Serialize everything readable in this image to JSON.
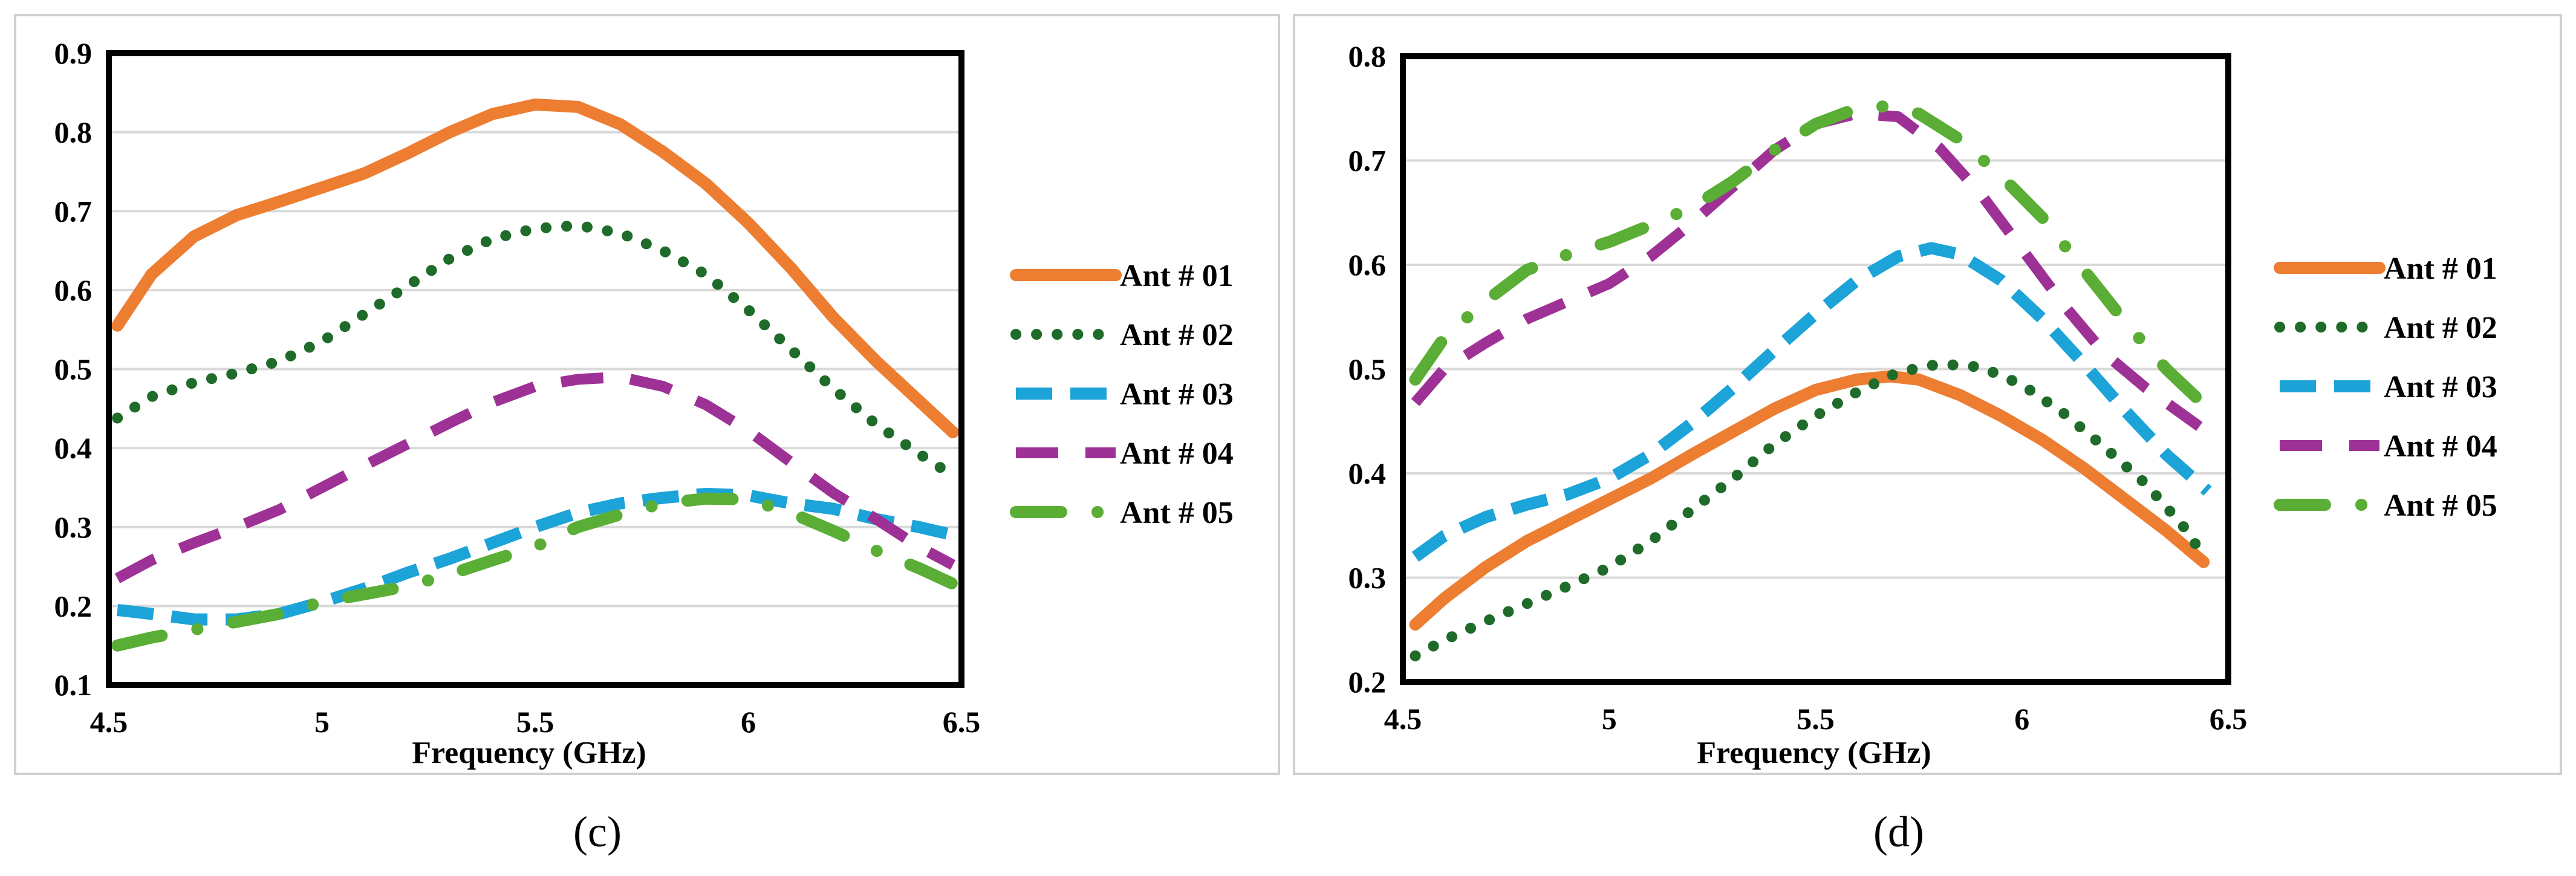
{
  "chart_data": [
    {
      "type": "line",
      "panel_label": "(c)",
      "xlabel": "Frequency (GHz)",
      "ylabel": "",
      "xlim": [
        4.5,
        6.5
      ],
      "ylim": [
        0.1,
        0.9
      ],
      "xticks": [
        4.5,
        5,
        5.5,
        6,
        6.5
      ],
      "yticks": [
        0.1,
        0.2,
        0.3,
        0.4,
        0.5,
        0.6,
        0.7,
        0.8,
        0.9
      ],
      "xtick_labels": [
        "4.5",
        "5",
        "5.5",
        "6",
        "6.5"
      ],
      "ytick_labels": [
        "0.1",
        "0.2",
        "0.3",
        "0.4",
        "0.5",
        "0.6",
        "0.7",
        "0.8",
        "0.9"
      ],
      "grid": true,
      "legend_position": "right",
      "series": [
        {
          "name": "Ant # 01",
          "color": "#ED7D31",
          "style": "solid",
          "x": [
            4.52,
            4.6,
            4.7,
            4.8,
            4.9,
            5.0,
            5.1,
            5.2,
            5.3,
            5.4,
            5.5,
            5.6,
            5.7,
            5.8,
            5.9,
            6.0,
            6.1,
            6.2,
            6.3,
            6.4,
            6.48
          ],
          "y": [
            0.555,
            0.62,
            0.668,
            0.695,
            0.712,
            0.73,
            0.748,
            0.773,
            0.8,
            0.823,
            0.835,
            0.832,
            0.81,
            0.775,
            0.735,
            0.685,
            0.628,
            0.565,
            0.51,
            0.46,
            0.42
          ]
        },
        {
          "name": "Ant # 02",
          "color": "#1E6B2A",
          "style": "dotted",
          "x": [
            4.52,
            4.6,
            4.7,
            4.8,
            4.9,
            5.0,
            5.1,
            5.2,
            5.3,
            5.4,
            5.5,
            5.6,
            5.7,
            5.8,
            5.9,
            6.0,
            6.1,
            6.2,
            6.3,
            6.4,
            6.48
          ],
          "y": [
            0.438,
            0.465,
            0.483,
            0.495,
            0.51,
            0.535,
            0.57,
            0.605,
            0.64,
            0.665,
            0.678,
            0.682,
            0.672,
            0.65,
            0.62,
            0.575,
            0.525,
            0.475,
            0.43,
            0.393,
            0.365
          ]
        },
        {
          "name": "Ant # 03",
          "color": "#1CA3D8",
          "style": "dashed",
          "x": [
            4.52,
            4.6,
            4.7,
            4.8,
            4.9,
            5.0,
            5.1,
            5.2,
            5.3,
            5.4,
            5.5,
            5.6,
            5.7,
            5.8,
            5.9,
            6.0,
            6.1,
            6.2,
            6.3,
            6.4,
            6.48
          ],
          "y": [
            0.195,
            0.19,
            0.183,
            0.183,
            0.19,
            0.205,
            0.222,
            0.242,
            0.26,
            0.28,
            0.3,
            0.318,
            0.33,
            0.337,
            0.342,
            0.34,
            0.33,
            0.323,
            0.31,
            0.3,
            0.29
          ]
        },
        {
          "name": "Ant # 04",
          "color": "#9E3196",
          "style": "longdash",
          "x": [
            4.52,
            4.6,
            4.7,
            4.8,
            4.9,
            5.0,
            5.1,
            5.2,
            5.3,
            5.4,
            5.5,
            5.6,
            5.7,
            5.8,
            5.9,
            6.0,
            6.1,
            6.2,
            6.3,
            6.4,
            6.48
          ],
          "y": [
            0.235,
            0.258,
            0.28,
            0.3,
            0.322,
            0.35,
            0.378,
            0.405,
            0.432,
            0.458,
            0.478,
            0.487,
            0.49,
            0.478,
            0.455,
            0.422,
            0.382,
            0.343,
            0.31,
            0.275,
            0.252
          ]
        },
        {
          "name": "Ant # 05",
          "color": "#5AAE35",
          "style": "dashdot",
          "x": [
            4.52,
            4.6,
            4.7,
            4.8,
            4.9,
            5.0,
            5.1,
            5.2,
            5.3,
            5.4,
            5.5,
            5.6,
            5.7,
            5.8,
            5.9,
            6.0,
            6.1,
            6.2,
            6.3,
            6.4,
            6.48
          ],
          "y": [
            0.15,
            0.16,
            0.17,
            0.18,
            0.19,
            0.205,
            0.215,
            0.225,
            0.24,
            0.258,
            0.275,
            0.3,
            0.316,
            0.33,
            0.336,
            0.335,
            0.318,
            0.295,
            0.27,
            0.248,
            0.228
          ]
        }
      ]
    },
    {
      "type": "line",
      "panel_label": "(d)",
      "xlabel": "Frequency (GHz)",
      "ylabel": "",
      "xlim": [
        4.5,
        6.5
      ],
      "ylim": [
        0.2,
        0.8
      ],
      "xticks": [
        4.5,
        5,
        5.5,
        6,
        6.5
      ],
      "yticks": [
        0.2,
        0.3,
        0.4,
        0.5,
        0.6,
        0.7,
        0.8
      ],
      "xtick_labels": [
        "4.5",
        "5",
        "5.5",
        "6",
        "6.5"
      ],
      "ytick_labels": [
        "0.2",
        "0.3",
        "0.4",
        "0.5",
        "0.6",
        "0.7",
        "0.8"
      ],
      "grid": true,
      "legend_position": "right",
      "series": [
        {
          "name": "Ant # 01",
          "color": "#ED7D31",
          "style": "solid",
          "x": [
            4.53,
            4.6,
            4.7,
            4.8,
            4.9,
            5.0,
            5.1,
            5.2,
            5.3,
            5.4,
            5.5,
            5.6,
            5.68,
            5.75,
            5.85,
            5.95,
            6.05,
            6.15,
            6.25,
            6.35,
            6.44
          ],
          "y": [
            0.255,
            0.28,
            0.31,
            0.335,
            0.355,
            0.375,
            0.395,
            0.418,
            0.44,
            0.462,
            0.48,
            0.49,
            0.493,
            0.49,
            0.475,
            0.455,
            0.432,
            0.405,
            0.375,
            0.345,
            0.315
          ]
        },
        {
          "name": "Ant # 02",
          "color": "#1E6B2A",
          "style": "dotted",
          "x": [
            4.53,
            4.6,
            4.7,
            4.8,
            4.9,
            5.0,
            5.1,
            5.2,
            5.3,
            5.4,
            5.5,
            5.6,
            5.7,
            5.8,
            5.9,
            6.0,
            6.1,
            6.2,
            6.3,
            6.4,
            6.44
          ],
          "y": [
            0.225,
            0.24,
            0.258,
            0.275,
            0.292,
            0.31,
            0.335,
            0.365,
            0.395,
            0.428,
            0.455,
            0.478,
            0.497,
            0.505,
            0.502,
            0.485,
            0.458,
            0.425,
            0.39,
            0.345,
            0.32
          ]
        },
        {
          "name": "Ant # 03",
          "color": "#1CA3D8",
          "style": "dashed",
          "x": [
            4.53,
            4.6,
            4.7,
            4.8,
            4.9,
            5.0,
            5.1,
            5.2,
            5.3,
            5.4,
            5.5,
            5.6,
            5.7,
            5.78,
            5.85,
            5.95,
            6.05,
            6.15,
            6.25,
            6.35,
            6.45
          ],
          "y": [
            0.32,
            0.34,
            0.358,
            0.37,
            0.38,
            0.395,
            0.418,
            0.448,
            0.482,
            0.518,
            0.553,
            0.585,
            0.608,
            0.616,
            0.61,
            0.585,
            0.548,
            0.505,
            0.46,
            0.418,
            0.383
          ]
        },
        {
          "name": "Ant # 04",
          "color": "#9E3196",
          "style": "longdash",
          "x": [
            4.53,
            4.6,
            4.7,
            4.8,
            4.9,
            5.0,
            5.1,
            5.2,
            5.3,
            5.4,
            5.5,
            5.6,
            5.7,
            5.8,
            5.9,
            6.0,
            6.1,
            6.2,
            6.3,
            6.43
          ],
          "y": [
            0.468,
            0.5,
            0.525,
            0.548,
            0.565,
            0.582,
            0.608,
            0.64,
            0.675,
            0.71,
            0.735,
            0.745,
            0.742,
            0.712,
            0.668,
            0.615,
            0.562,
            0.515,
            0.482,
            0.445
          ]
        },
        {
          "name": "Ant # 05",
          "color": "#5AAE35",
          "style": "dashdot",
          "x": [
            4.53,
            4.6,
            4.7,
            4.8,
            4.9,
            5.0,
            5.1,
            5.2,
            5.3,
            5.4,
            5.5,
            5.6,
            5.67,
            5.75,
            5.85,
            5.95,
            6.05,
            6.15,
            6.25,
            6.35,
            6.43
          ],
          "y": [
            0.49,
            0.53,
            0.565,
            0.595,
            0.61,
            0.622,
            0.638,
            0.655,
            0.68,
            0.71,
            0.735,
            0.75,
            0.752,
            0.745,
            0.72,
            0.685,
            0.645,
            0.595,
            0.545,
            0.5,
            0.47
          ]
        }
      ]
    }
  ]
}
